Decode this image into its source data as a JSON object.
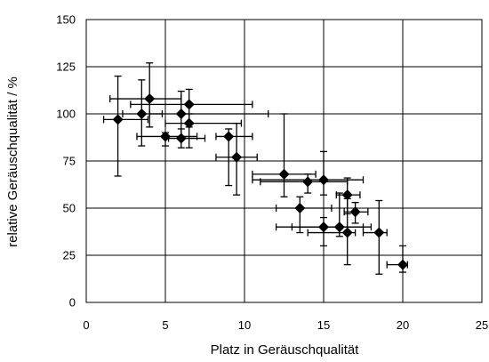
{
  "chart_data": {
    "type": "scatter",
    "title": "",
    "xlabel": "Platz in Geräuschqualität",
    "ylabel": "relative Geräuschqualität / %",
    "xlim": [
      0,
      25
    ],
    "ylim": [
      0,
      150
    ],
    "xticks": [
      0,
      5,
      10,
      15,
      20,
      25
    ],
    "yticks": [
      0,
      25,
      50,
      75,
      100,
      125,
      150
    ],
    "xtick_labels": [
      "0",
      "5",
      "10",
      "15",
      "20",
      "25"
    ],
    "ytick_labels": [
      "0",
      "25",
      "50",
      "75",
      "100",
      "125",
      "150"
    ],
    "grid": true,
    "legend": "none",
    "marker": "diamond",
    "series": [
      {
        "points": [
          {
            "x": 2.0,
            "y": 97,
            "x_err": [
              1.1,
              3.9
            ],
            "y_err": [
              67,
              120
            ]
          },
          {
            "x": 3.5,
            "y": 100,
            "x_err": [
              2.3,
              4.8
            ],
            "y_err": [
              83,
              118
            ]
          },
          {
            "x": 4.0,
            "y": 108,
            "x_err": [
              1.5,
              6.0
            ],
            "y_err": [
              93,
              127
            ]
          },
          {
            "x": 6.0,
            "y": 100,
            "x_err": [
              4.0,
              11.5
            ],
            "y_err": [
              88,
              112
            ]
          },
          {
            "x": 6.5,
            "y": 105,
            "x_err": [
              2.8,
              10.5
            ],
            "y_err": [
              93,
              113
            ]
          },
          {
            "x": 6.5,
            "y": 95,
            "x_err": [
              5.0,
              9.8
            ],
            "y_err": [
              82,
              100
            ]
          },
          {
            "x": 5.0,
            "y": 88,
            "x_err": [
              3.2,
              7.0
            ],
            "y_err": [
              83,
              90
            ]
          },
          {
            "x": 6.0,
            "y": 87,
            "x_err": [
              5.2,
              7.5
            ],
            "y_err": [
              82,
              92
            ]
          },
          {
            "x": 9.0,
            "y": 88,
            "x_err": [
              8.2,
              10.5
            ],
            "y_err": [
              62,
              92
            ]
          },
          {
            "x": 9.5,
            "y": 77,
            "x_err": [
              8.2,
              10.8
            ],
            "y_err": [
              57,
              95
            ]
          },
          {
            "x": 12.5,
            "y": 68,
            "x_err": [
              10.5,
              14.5
            ],
            "y_err": [
              56,
              100
            ]
          },
          {
            "x": 14.0,
            "y": 64,
            "x_err": [
              11.0,
              16.5
            ],
            "y_err": [
              58,
              68
            ]
          },
          {
            "x": 15.0,
            "y": 65,
            "x_err": [
              10.5,
              17.5
            ],
            "y_err": [
              57,
              80
            ]
          },
          {
            "x": 16.5,
            "y": 57,
            "x_err": [
              15.8,
              17.3
            ],
            "y_err": [
              47,
              66
            ]
          },
          {
            "x": 13.5,
            "y": 50,
            "x_err": [
              12.0,
              15.5
            ],
            "y_err": [
              37,
              56
            ]
          },
          {
            "x": 17.0,
            "y": 48,
            "x_err": [
              16.3,
              17.8
            ],
            "y_err": [
              42,
              53
            ]
          },
          {
            "x": 15.0,
            "y": 40,
            "x_err": [
              13.0,
              17.5
            ],
            "y_err": [
              30,
              45
            ]
          },
          {
            "x": 16.0,
            "y": 40,
            "x_err": [
              12.0,
              18.0
            ],
            "y_err": [
              35,
              58
            ]
          },
          {
            "x": 16.5,
            "y": 37,
            "x_err": [
              14.0,
              17.0
            ],
            "y_err": [
              20,
              55
            ]
          },
          {
            "x": 18.5,
            "y": 37,
            "x_err": [
              17.5,
              19.0
            ],
            "y_err": [
              15,
              54
            ]
          },
          {
            "x": 20.0,
            "y": 20,
            "x_err": [
              19.0,
              20.3
            ],
            "y_err": [
              16,
              30
            ]
          }
        ]
      }
    ]
  }
}
